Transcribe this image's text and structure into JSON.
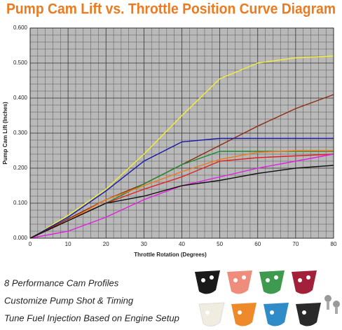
{
  "chart_data": {
    "type": "line",
    "title": "Pump Cam Lift vs. Throttle Position Curve Diagram",
    "x_label": "Throttle Rotation (Degrees)",
    "y_label": "Pump Cam Lift (Inches)",
    "x": [
      0,
      10,
      20,
      30,
      40,
      50,
      60,
      70,
      80
    ],
    "series": [
      {
        "color": "#f2ee3a",
        "values": [
          0,
          0.065,
          0.14,
          0.24,
          0.35,
          0.455,
          0.5,
          0.515,
          0.52
        ]
      },
      {
        "color": "#8b2a10",
        "values": [
          0,
          0.055,
          0.11,
          0.155,
          0.21,
          0.265,
          0.32,
          0.37,
          0.41
        ]
      },
      {
        "color": "#1a1aa8",
        "values": [
          0,
          0.06,
          0.135,
          0.22,
          0.275,
          0.285,
          0.285,
          0.285,
          0.285
        ]
      },
      {
        "color": "#1e8a2e",
        "values": [
          0,
          0.05,
          0.1,
          0.155,
          0.21,
          0.248,
          0.248,
          0.248,
          0.248
        ]
      },
      {
        "color": "#f07a1a",
        "values": [
          0,
          0.05,
          0.11,
          0.15,
          0.19,
          0.225,
          0.245,
          0.25,
          0.25
        ]
      },
      {
        "color": "#e02020",
        "values": [
          0,
          0.05,
          0.1,
          0.14,
          0.175,
          0.22,
          0.23,
          0.235,
          0.24
        ]
      },
      {
        "color": "#e020e0",
        "values": [
          0,
          0.02,
          0.06,
          0.11,
          0.15,
          0.175,
          0.2,
          0.22,
          0.24
        ]
      },
      {
        "color": "#111111",
        "values": [
          0,
          0.05,
          0.1,
          0.12,
          0.15,
          0.165,
          0.185,
          0.2,
          0.208
        ]
      }
    ],
    "xlim": [
      0,
      80
    ],
    "xticks": [
      0,
      10,
      20,
      30,
      40,
      50,
      60,
      70,
      80
    ],
    "ylim": [
      0,
      0.6
    ],
    "yticks": [
      {
        "value": 0,
        "label": "0.000"
      },
      {
        "value": 0.1,
        "label": "0.100"
      },
      {
        "value": 0.2,
        "label": "0.200"
      },
      {
        "value": 0.3,
        "label": "0.300"
      },
      {
        "value": 0.4,
        "label": "0.400"
      },
      {
        "value": 0.5,
        "label": "0.500"
      },
      {
        "value": 0.6,
        "label": "0.600"
      }
    ],
    "grid": true
  },
  "features": [
    "8 Performance Cam Profiles",
    "Customize Pump Shot & Timing",
    "Tune Fuel Injection Based on Engine Setup"
  ]
}
